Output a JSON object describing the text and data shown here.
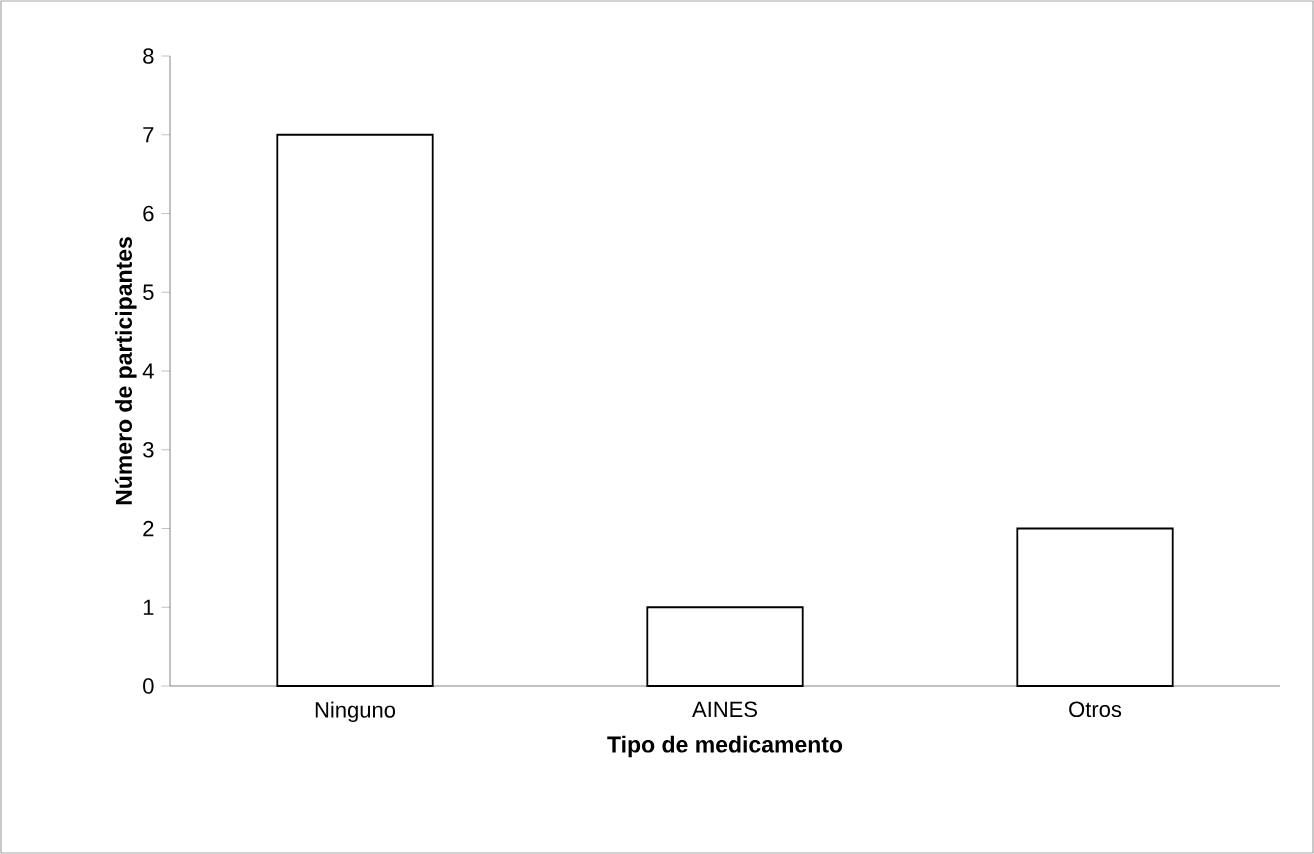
{
  "chart_data": {
    "type": "bar",
    "xlabel": "Tipo de medicamento",
    "ylabel": "Número de participantes",
    "categories": [
      "Ninguno",
      "AINES",
      "Otros"
    ],
    "values": [
      7,
      1,
      2
    ],
    "color": "#ffffff",
    "ylim": [
      0,
      8
    ],
    "yticks": [
      0,
      1,
      2,
      3,
      4,
      5,
      6,
      7,
      8
    ],
    "grid": false
  }
}
